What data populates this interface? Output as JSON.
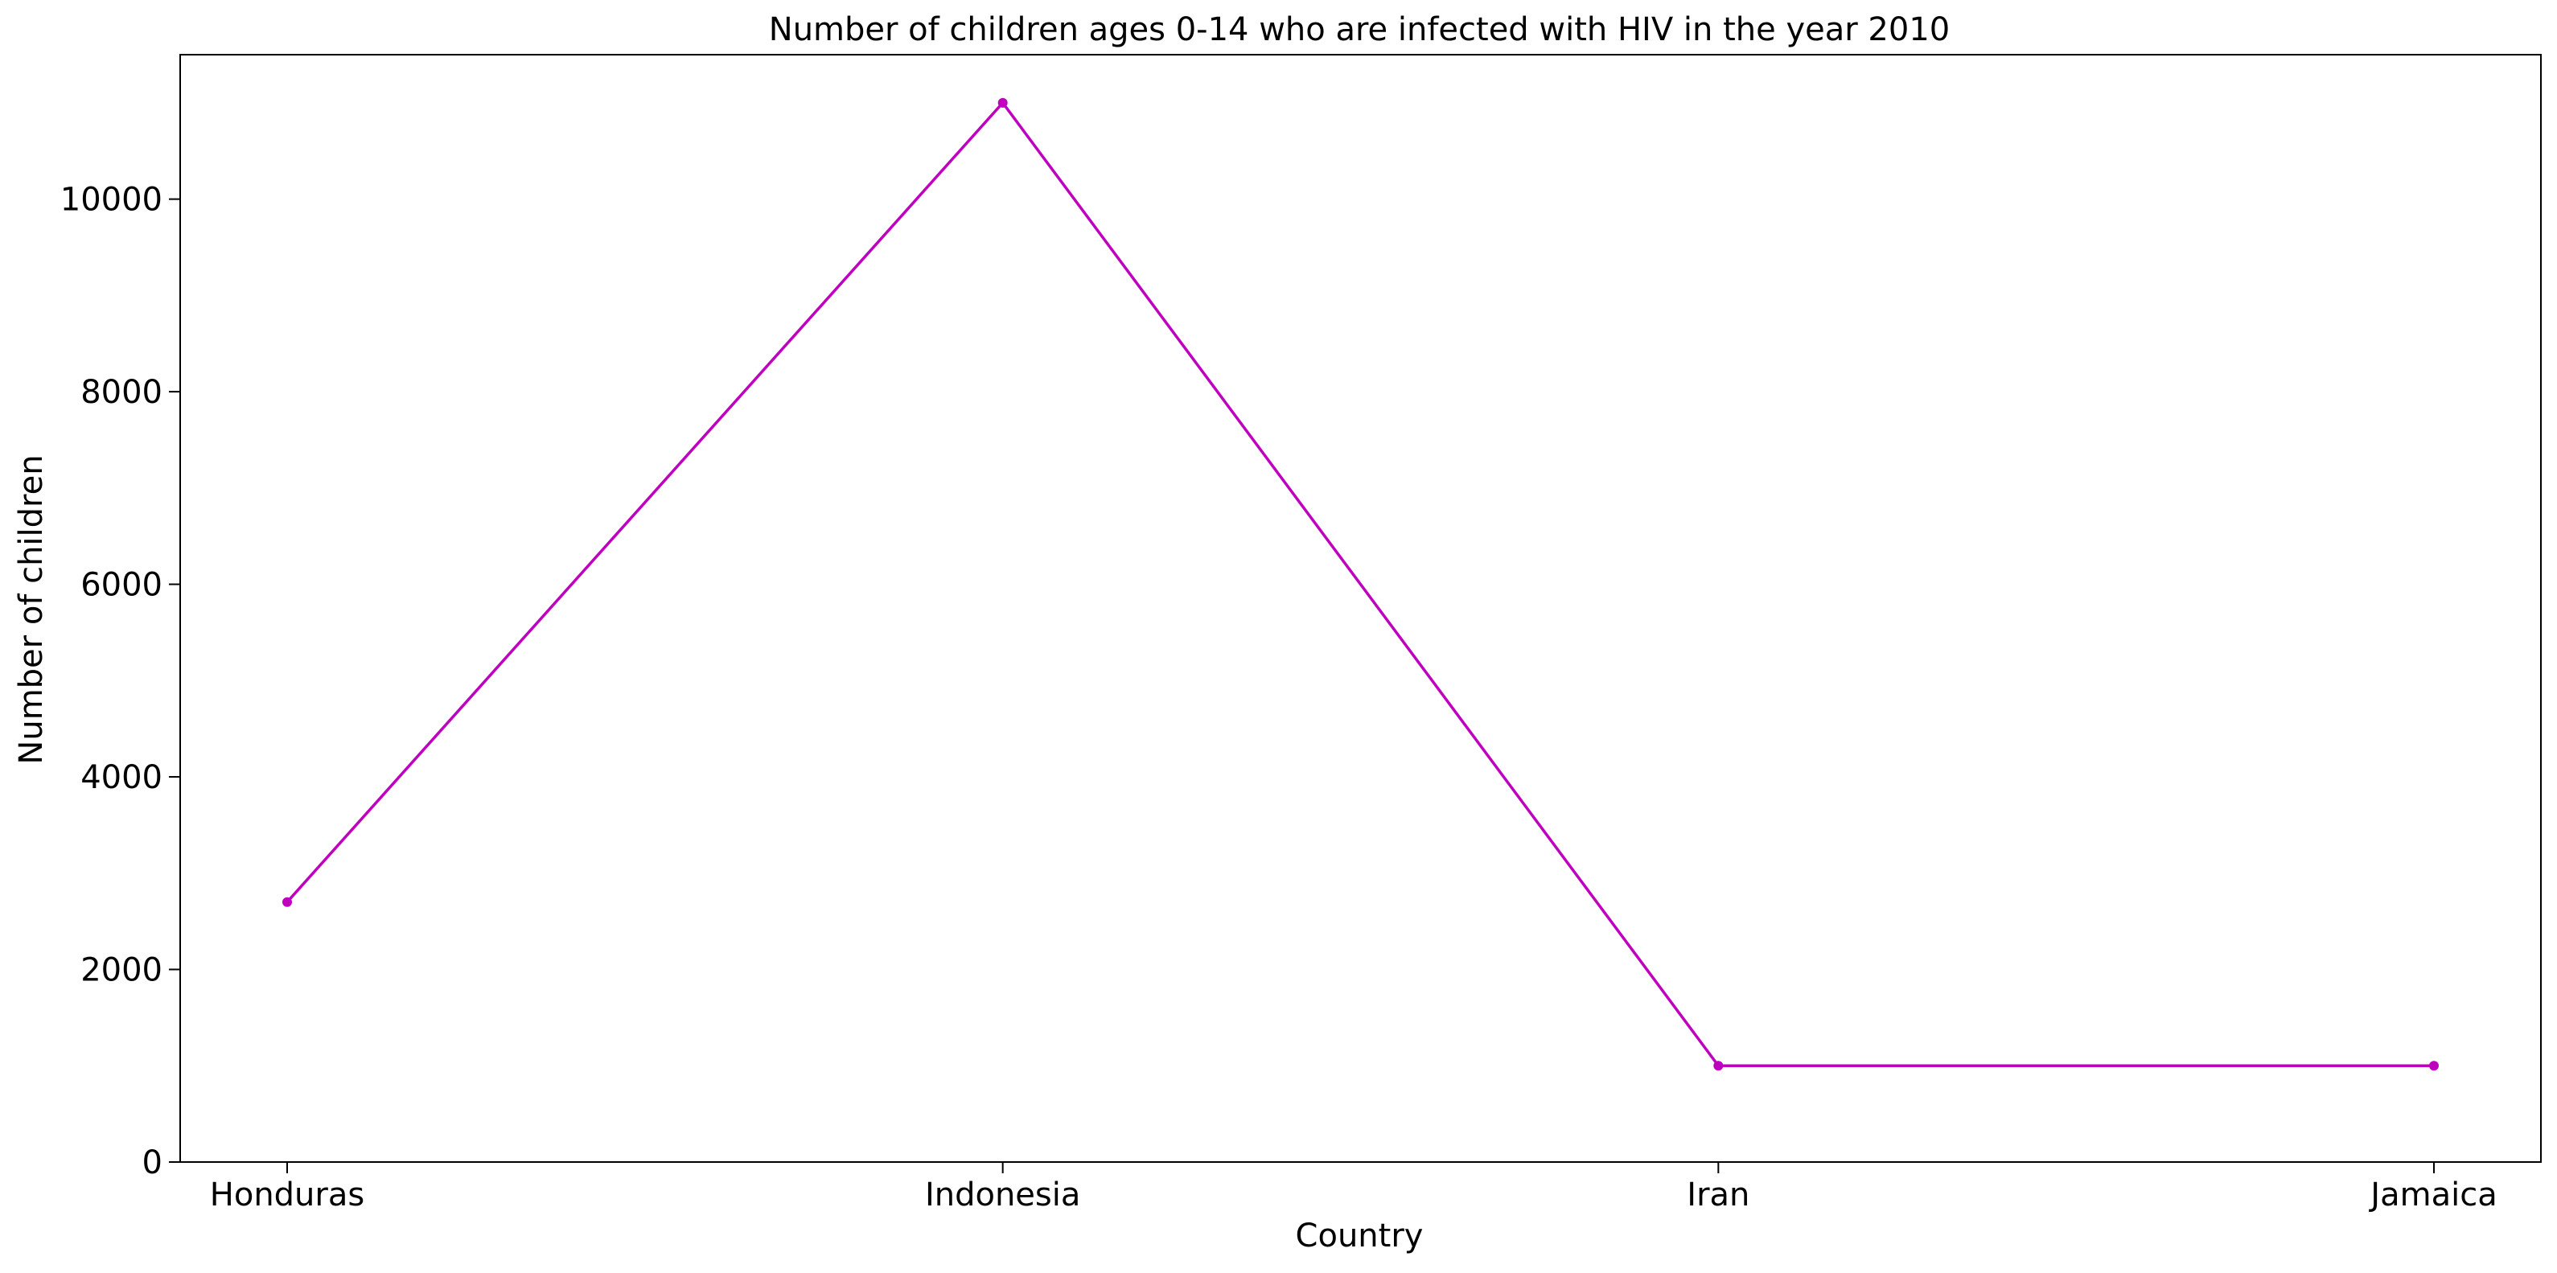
{
  "chart_data": {
    "type": "line",
    "title": "Number of children ages 0-14 who are infected with HIV in the year 2010",
    "xlabel": "Country",
    "ylabel": "Number of children",
    "categories": [
      "Honduras",
      "Indonesia",
      "Iran",
      "Jamaica"
    ],
    "series": [
      {
        "values": [
          2700,
          11000,
          1000,
          1000
        ],
        "color": "#bf00bf",
        "marker": "point"
      }
    ],
    "ylim": [
      0,
      11500
    ],
    "yticks": [
      0,
      2000,
      4000,
      6000,
      8000,
      10000
    ],
    "grid": false
  }
}
